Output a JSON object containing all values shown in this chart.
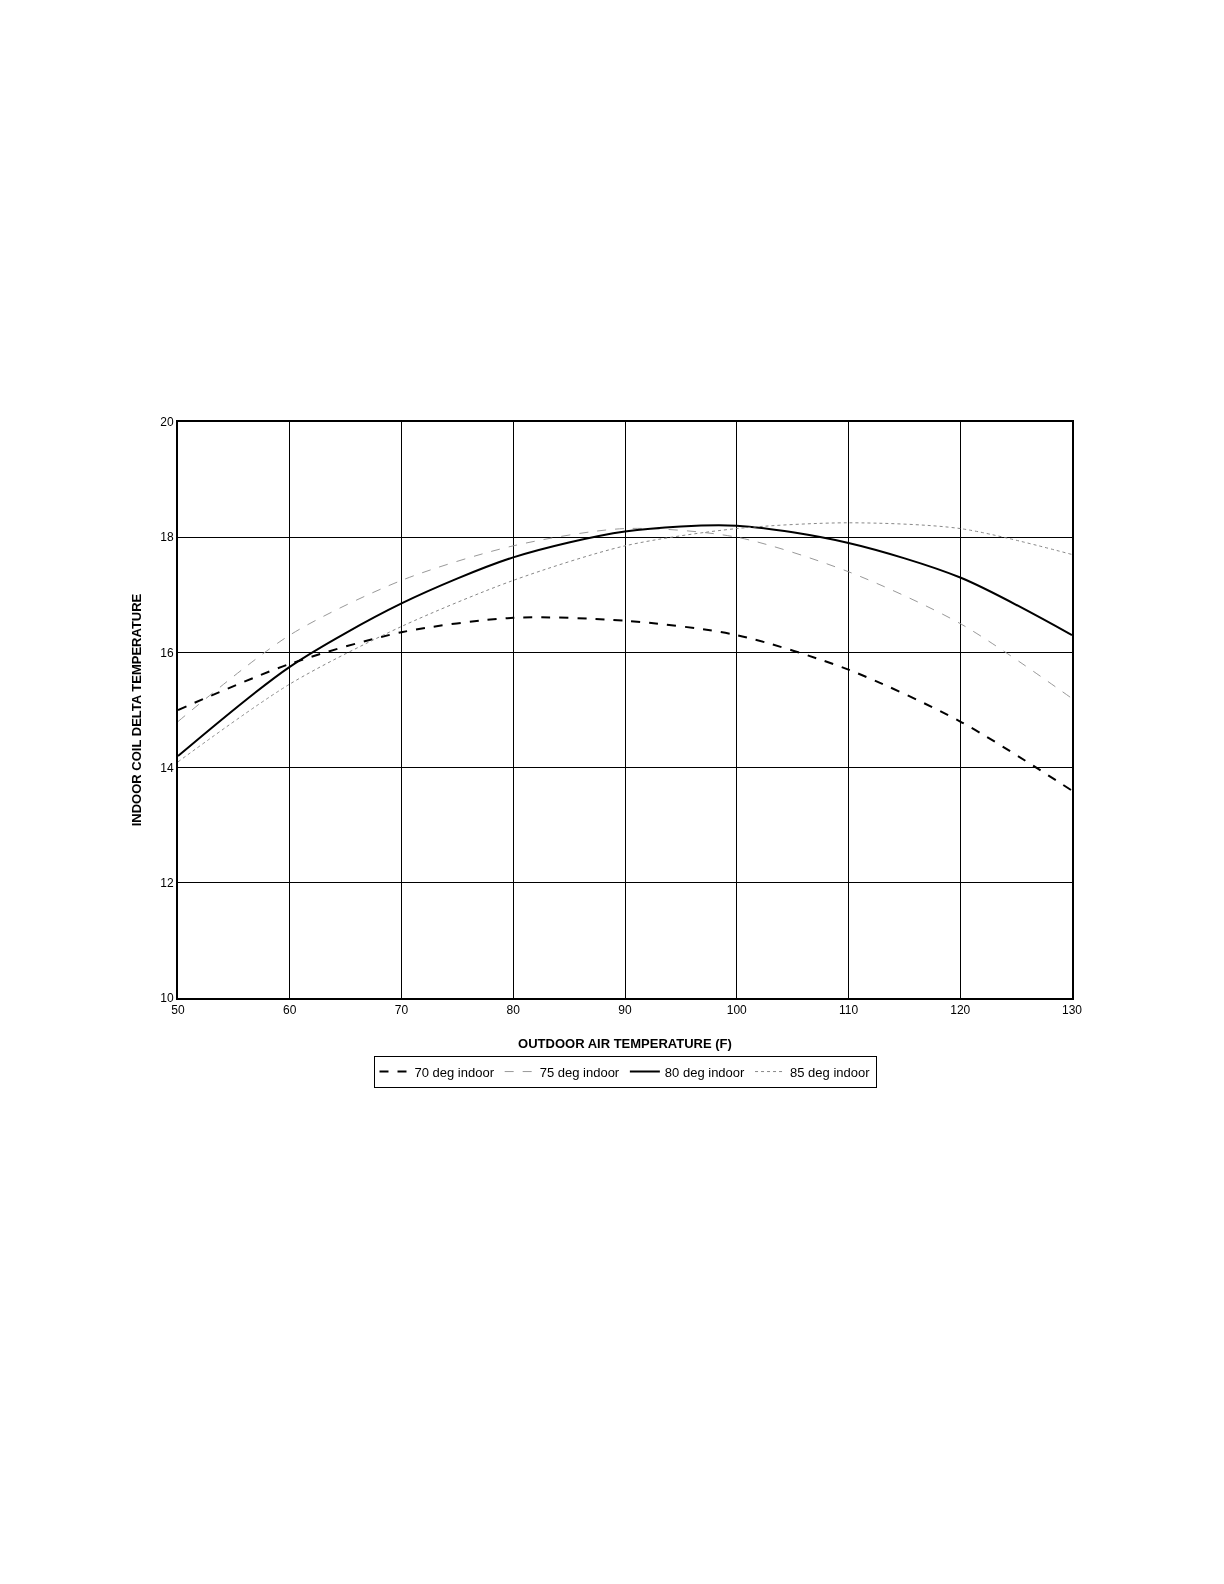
{
  "chart_data": {
    "type": "line",
    "xlabel": "OUTDOOR AIR TEMPERATURE (F)",
    "ylabel": "INDOOR COIL DELTA TEMPERATURE",
    "x": [
      50,
      60,
      70,
      80,
      90,
      100,
      110,
      120,
      130
    ],
    "series": [
      {
        "name": "70 deg indoor",
        "color": "#000000",
        "line_style": "dashed",
        "values": [
          15.0,
          15.8,
          16.35,
          16.6,
          16.55,
          16.3,
          15.7,
          14.8,
          13.6
        ]
      },
      {
        "name": "75 deg indoor",
        "color": "#999999",
        "line_style": "dashed",
        "values": [
          14.8,
          16.3,
          17.25,
          17.85,
          18.15,
          18.0,
          17.4,
          16.5,
          15.2
        ]
      },
      {
        "name": "80 deg indoor",
        "color": "#000000",
        "line_style": "solid",
        "values": [
          14.2,
          15.75,
          16.85,
          17.65,
          18.1,
          18.2,
          17.9,
          17.3,
          16.3
        ]
      },
      {
        "name": "85 deg indoor",
        "color": "#888888",
        "line_style": "dotted",
        "values": [
          14.1,
          15.45,
          16.45,
          17.25,
          17.85,
          18.15,
          18.25,
          18.15,
          17.7
        ]
      }
    ],
    "xlim": [
      50,
      130
    ],
    "xticks": [
      50,
      60,
      70,
      80,
      90,
      100,
      110,
      120,
      130
    ],
    "ylim": [
      10,
      20
    ],
    "yticks": [
      10,
      12,
      14,
      16,
      18,
      20
    ],
    "grid": true,
    "legend": "bottom",
    "marker": "none"
  }
}
